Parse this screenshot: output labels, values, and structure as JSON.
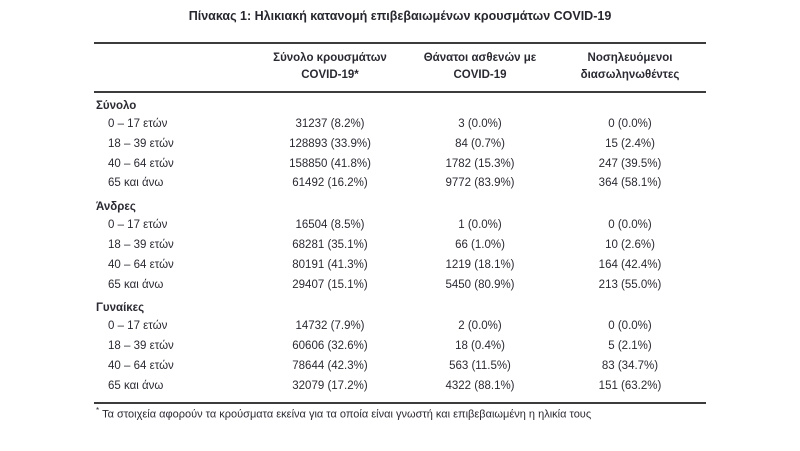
{
  "title": "Πίνακας 1: Ηλικιακή κατανομή επιβεβαιωμένων κρουσμάτων COVID-19",
  "table": {
    "columns": [
      {
        "lines": [
          "",
          ""
        ]
      },
      {
        "lines": [
          "Σύνολο κρουσμάτων",
          "COVID-19*"
        ]
      },
      {
        "lines": [
          "Θάνατοι ασθενών με",
          "COVID-19"
        ]
      },
      {
        "lines": [
          "Νοσηλευόμενοι",
          "διασωληνωθέντες"
        ]
      }
    ],
    "sections": [
      {
        "label": "Σύνολο",
        "rows": [
          [
            "0 – 17 ετών",
            "31237 (8.2%)",
            "3 (0.0%)",
            "0 (0.0%)"
          ],
          [
            "18 – 39 ετών",
            "128893 (33.9%)",
            "84 (0.7%)",
            "15 (2.4%)"
          ],
          [
            "40 – 64 ετών",
            "158850 (41.8%)",
            "1782 (15.3%)",
            "247 (39.5%)"
          ],
          [
            "65 και άνω",
            "61492 (16.2%)",
            "9772 (83.9%)",
            "364 (58.1%)"
          ]
        ]
      },
      {
        "label": "Άνδρες",
        "rows": [
          [
            "0 – 17 ετών",
            "16504 (8.5%)",
            "1 (0.0%)",
            "0 (0.0%)"
          ],
          [
            "18 – 39 ετών",
            "68281 (35.1%)",
            "66 (1.0%)",
            "10 (2.6%)"
          ],
          [
            "40 – 64 ετών",
            "80191 (41.3%)",
            "1219 (18.1%)",
            "164 (42.4%)"
          ],
          [
            "65 και άνω",
            "29407 (15.1%)",
            "5450 (80.9%)",
            "213 (55.0%)"
          ]
        ]
      },
      {
        "label": "Γυναίκες",
        "rows": [
          [
            "0 – 17 ετών",
            "14732 (7.9%)",
            "2 (0.0%)",
            "0 (0.0%)"
          ],
          [
            "18 – 39 ετών",
            "60606 (32.6%)",
            "18 (0.4%)",
            "5 (2.1%)"
          ],
          [
            "40 – 64 ετών",
            "78644 (42.3%)",
            "563 (11.5%)",
            "83 (34.7%)"
          ],
          [
            "65 και άνω",
            "32079 (17.2%)",
            "4322 (88.1%)",
            "151 (63.2%)"
          ]
        ]
      }
    ],
    "footnote_marker": "*",
    "footnote": "Τα στοιχεία αφορούν τα κρούσματα εκείνα για τα οποία είναι γνωστή και επιβεβαιωμένη η ηλικία τους"
  },
  "colors": {
    "text": "#2a2a33",
    "border": "#3c3c3c",
    "background": "#ffffff"
  }
}
